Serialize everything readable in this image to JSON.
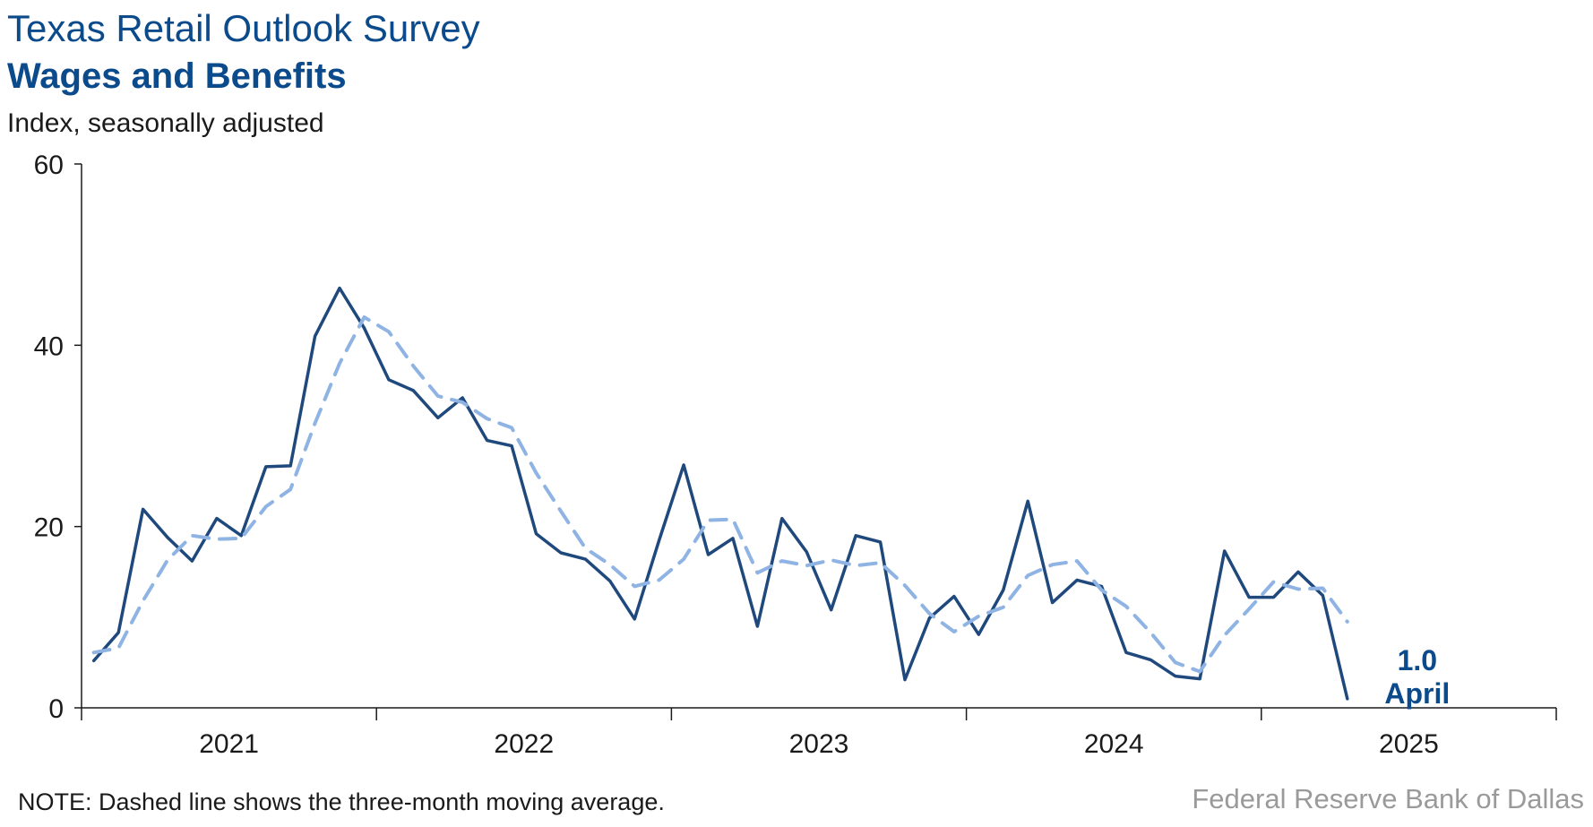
{
  "header": {
    "title": "Texas Retail Outlook Survey",
    "subtitle": "Wages and Benefits",
    "unit": "Index, seasonally adjusted"
  },
  "footer": {
    "note": "NOTE: Dashed line shows the three-month moving average.",
    "source": "Federal Reserve Bank of Dallas"
  },
  "colors": {
    "index_line": "#1f497d",
    "moving_average": "#8fb4e3",
    "axis": "#1a1a1a",
    "title": "#0b4a8b"
  },
  "chart_data": {
    "type": "line",
    "title": "Wages and Benefits",
    "ylabel": "Index, seasonally adjusted",
    "ylim": [
      0,
      60
    ],
    "yticks": [
      0,
      20,
      40,
      60
    ],
    "xticks": [
      "2021",
      "2022",
      "2023",
      "2024",
      "2025"
    ],
    "xlim": [
      "2021-01",
      "2025-12"
    ],
    "grid": false,
    "legend": "none",
    "x": [
      "2021-01",
      "2021-02",
      "2021-03",
      "2021-04",
      "2021-05",
      "2021-06",
      "2021-07",
      "2021-08",
      "2021-09",
      "2021-10",
      "2021-11",
      "2021-12",
      "2022-01",
      "2022-02",
      "2022-03",
      "2022-04",
      "2022-05",
      "2022-06",
      "2022-07",
      "2022-08",
      "2022-09",
      "2022-10",
      "2022-11",
      "2022-12",
      "2023-01",
      "2023-02",
      "2023-03",
      "2023-04",
      "2023-05",
      "2023-06",
      "2023-07",
      "2023-08",
      "2023-09",
      "2023-10",
      "2023-11",
      "2023-12",
      "2024-01",
      "2024-02",
      "2024-03",
      "2024-04",
      "2024-05",
      "2024-06",
      "2024-07",
      "2024-08",
      "2024-09",
      "2024-10",
      "2024-11",
      "2024-12",
      "2025-01",
      "2025-02",
      "2025-03",
      "2025-04"
    ],
    "series": [
      {
        "style": "solid",
        "color": "#1f497d",
        "values": [
          5.2,
          8.3,
          21.9,
          18.8,
          16.2,
          20.9,
          19.0,
          26.6,
          26.7,
          41.0,
          46.3,
          41.9,
          36.2,
          35.0,
          32.0,
          34.2,
          29.5,
          28.9,
          19.2,
          17.1,
          16.4,
          14.0,
          9.8,
          18.5,
          26.8,
          16.9,
          18.7,
          9.0,
          20.9,
          17.2,
          10.8,
          19.0,
          18.3,
          3.1,
          9.9,
          12.3,
          8.1,
          13.0,
          22.8,
          11.6,
          14.1,
          13.4,
          6.1,
          5.3,
          3.5,
          3.2,
          17.3,
          12.2,
          12.2,
          15.0,
          12.4,
          1.0
        ]
      },
      {
        "style": "dashed",
        "color": "#8fb4e3",
        "values": [
          6.1,
          6.6,
          11.8,
          16.3,
          19.0,
          18.6,
          18.7,
          22.2,
          24.1,
          31.4,
          38.0,
          43.1,
          41.5,
          37.7,
          34.4,
          33.7,
          31.9,
          30.9,
          25.9,
          21.7,
          17.6,
          15.8,
          13.4,
          14.1,
          16.4,
          20.7,
          20.8,
          14.9,
          16.2,
          15.7,
          16.3,
          15.7,
          16.0,
          13.5,
          10.4,
          8.4,
          10.1,
          11.1,
          14.6,
          15.8,
          16.2,
          13.0,
          11.2,
          8.3,
          5.0,
          4.0,
          8.0,
          10.9,
          13.9,
          13.1,
          13.2,
          9.5
        ]
      }
    ],
    "annotations": [
      {
        "value": "1.0",
        "label": "April"
      }
    ]
  }
}
